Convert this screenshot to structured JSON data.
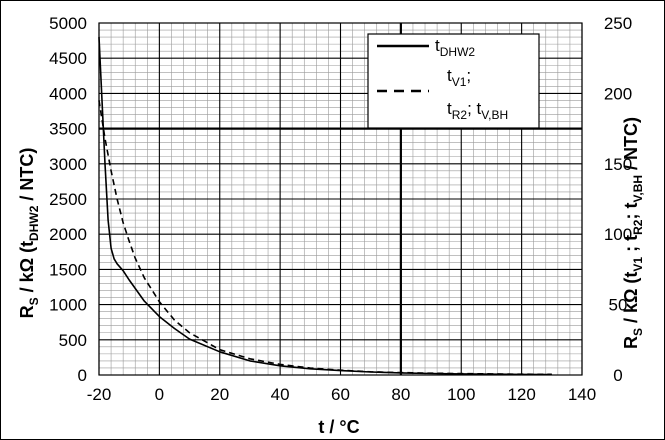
{
  "chart_data": {
    "type": "line",
    "xlabel": "t / °C",
    "ylabel_left": "R_S / kΩ (t_DHW2 / NTC)",
    "ylabel_right": "R_S / kΩ (t_V1 ; t_R2; t_V,BH / NTC)",
    "xlim": [
      -20,
      140
    ],
    "ylim_left": [
      0,
      5000
    ],
    "ylim_right": [
      0,
      250
    ],
    "x_ticks": [
      "-20",
      "0",
      "20",
      "40",
      "60",
      "80",
      "100",
      "120",
      "140"
    ],
    "y_ticks_left": [
      "0",
      "500",
      "1000",
      "1500",
      "2000",
      "2500",
      "3000",
      "3500",
      "4000",
      "4500",
      "5000"
    ],
    "y_ticks_right": [
      "0",
      "50",
      "100",
      "150",
      "200",
      "250"
    ],
    "grid": true,
    "legend_position": "top-right",
    "series": [
      {
        "name": "t_DHW2",
        "legend_main": "t",
        "legend_sub": "DHW2",
        "axis": "left",
        "style": "solid",
        "x": [
          -20,
          -19,
          -18,
          -17,
          -16,
          -15,
          -14,
          -12,
          -10,
          -8,
          -5,
          0,
          5,
          10,
          20,
          30,
          40,
          50,
          60,
          70,
          80,
          90,
          100,
          110,
          120,
          130
        ],
        "y": [
          4800,
          3900,
          3000,
          2200,
          1800,
          1650,
          1580,
          1480,
          1350,
          1230,
          1050,
          830,
          660,
          510,
          330,
          200,
          130,
          88,
          62,
          43,
          30,
          22,
          16,
          12,
          9,
          7
        ]
      },
      {
        "name": "t_V1; t_R2; t_V,BH",
        "legend_line1_main": "t",
        "legend_line1_sub": "V1",
        "legend_line1_tail": ";",
        "legend_line2_a": "t",
        "legend_line2_a_sub": "R2",
        "legend_line2_mid": "; t",
        "legend_line2_b_sub": "V,BH",
        "axis": "right",
        "style": "dashed",
        "x": [
          -20,
          -18,
          -16,
          -14,
          -12,
          -10,
          -8,
          -5,
          0,
          5,
          10,
          15,
          20,
          30,
          40,
          50,
          60,
          70,
          80,
          90,
          100,
          110,
          120,
          130
        ],
        "y": [
          195,
          168,
          145,
          125,
          108,
          95,
          83,
          69,
          52,
          39,
          30,
          24,
          18,
          11.5,
          7.5,
          5,
          3.4,
          2.3,
          1.7,
          1.3,
          1,
          0.8,
          0.6,
          0.5
        ]
      }
    ]
  }
}
